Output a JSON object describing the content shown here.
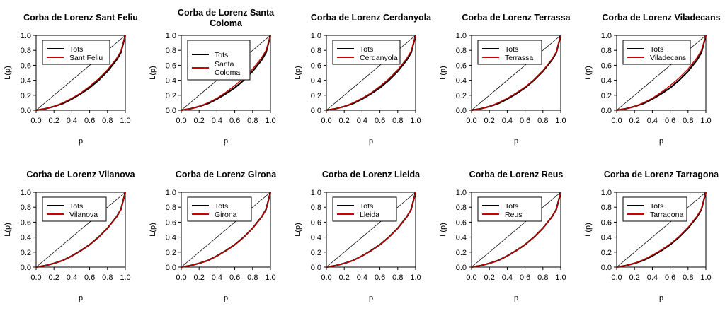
{
  "chart_data": [
    {
      "type": "line",
      "title": [
        "Corba de Lorenz Sant Feliu"
      ],
      "xlabel": "p",
      "ylabel": "L(p)",
      "xlim": [
        0,
        1
      ],
      "ylim": [
        0,
        1
      ],
      "xticks": [
        "0.0",
        "0.2",
        "0.4",
        "0.6",
        "0.8",
        "1.0"
      ],
      "yticks": [
        "0.0",
        "0.2",
        "0.4",
        "0.6",
        "0.8",
        "1.0"
      ],
      "legend_position": "top-left",
      "x": [
        0,
        0.1,
        0.2,
        0.3,
        0.4,
        0.5,
        0.6,
        0.7,
        0.8,
        0.9,
        0.95,
        1.0
      ],
      "series": [
        {
          "name": "Tots",
          "color": "#000000",
          "values": [
            0,
            0.02,
            0.05,
            0.09,
            0.15,
            0.22,
            0.3,
            0.4,
            0.52,
            0.67,
            0.77,
            1.0
          ]
        },
        {
          "name": "Sant Feliu",
          "color": "#cc0000",
          "values": [
            0,
            0.02,
            0.05,
            0.1,
            0.16,
            0.23,
            0.32,
            0.42,
            0.54,
            0.69,
            0.79,
            1.0
          ]
        }
      ]
    },
    {
      "type": "line",
      "title": [
        "Corba de Lorenz Santa",
        "Coloma"
      ],
      "xlabel": "p",
      "ylabel": "L(p)",
      "xlim": [
        0,
        1
      ],
      "ylim": [
        0,
        1
      ],
      "xticks": [
        "0.0",
        "0.2",
        "0.4",
        "0.6",
        "0.8",
        "1.0"
      ],
      "yticks": [
        "0.0",
        "0.2",
        "0.4",
        "0.6",
        "0.8",
        "1.0"
      ],
      "legend_position": "top-left",
      "x": [
        0,
        0.1,
        0.2,
        0.3,
        0.4,
        0.5,
        0.6,
        0.7,
        0.8,
        0.9,
        0.95,
        1.0
      ],
      "series": [
        {
          "name": "Tots",
          "color": "#000000",
          "values": [
            0,
            0.02,
            0.05,
            0.09,
            0.15,
            0.22,
            0.3,
            0.4,
            0.52,
            0.67,
            0.77,
            1.0
          ]
        },
        {
          "name": "Santa Coloma",
          "label_lines": [
            "Santa",
            "Coloma"
          ],
          "color": "#cc0000",
          "values": [
            0,
            0.02,
            0.05,
            0.1,
            0.16,
            0.24,
            0.33,
            0.43,
            0.55,
            0.7,
            0.8,
            1.0
          ]
        }
      ]
    },
    {
      "type": "line",
      "title": [
        "Corba de Lorenz Cerdanyola"
      ],
      "xlabel": "p",
      "ylabel": "L(p)",
      "xlim": [
        0,
        1
      ],
      "ylim": [
        0,
        1
      ],
      "xticks": [
        "0.0",
        "0.2",
        "0.4",
        "0.6",
        "0.8",
        "1.0"
      ],
      "yticks": [
        "0.0",
        "0.2",
        "0.4",
        "0.6",
        "0.8",
        "1.0"
      ],
      "legend_position": "top-left",
      "x": [
        0,
        0.1,
        0.2,
        0.3,
        0.4,
        0.5,
        0.6,
        0.7,
        0.8,
        0.9,
        0.95,
        1.0
      ],
      "series": [
        {
          "name": "Tots",
          "color": "#000000",
          "values": [
            0,
            0.02,
            0.05,
            0.09,
            0.15,
            0.22,
            0.3,
            0.4,
            0.52,
            0.67,
            0.77,
            1.0
          ]
        },
        {
          "name": "Cerdanyola",
          "color": "#cc0000",
          "values": [
            0,
            0.02,
            0.05,
            0.1,
            0.16,
            0.23,
            0.32,
            0.42,
            0.54,
            0.69,
            0.79,
            1.0
          ]
        }
      ]
    },
    {
      "type": "line",
      "title": [
        "Corba de Lorenz Terrassa"
      ],
      "xlabel": "p",
      "ylabel": "L(p)",
      "xlim": [
        0,
        1
      ],
      "ylim": [
        0,
        1
      ],
      "xticks": [
        "0.0",
        "0.2",
        "0.4",
        "0.6",
        "0.8",
        "1.0"
      ],
      "yticks": [
        "0.0",
        "0.2",
        "0.4",
        "0.6",
        "0.8",
        "1.0"
      ],
      "legend_position": "top-left",
      "x": [
        0,
        0.1,
        0.2,
        0.3,
        0.4,
        0.5,
        0.6,
        0.7,
        0.8,
        0.9,
        0.95,
        1.0
      ],
      "series": [
        {
          "name": "Tots",
          "color": "#000000",
          "values": [
            0,
            0.02,
            0.05,
            0.09,
            0.15,
            0.22,
            0.3,
            0.4,
            0.52,
            0.67,
            0.77,
            1.0
          ]
        },
        {
          "name": "Terrassa",
          "color": "#cc0000",
          "values": [
            0,
            0.02,
            0.05,
            0.1,
            0.16,
            0.23,
            0.31,
            0.41,
            0.53,
            0.68,
            0.78,
            1.0
          ]
        }
      ]
    },
    {
      "type": "line",
      "title": [
        "Corba de Lorenz Viladecans"
      ],
      "xlabel": "p",
      "ylabel": "L(p)",
      "xlim": [
        0,
        1
      ],
      "ylim": [
        0,
        1
      ],
      "xticks": [
        "0.0",
        "0.2",
        "0.4",
        "0.6",
        "0.8",
        "1.0"
      ],
      "yticks": [
        "0.0",
        "0.2",
        "0.4",
        "0.6",
        "0.8",
        "1.0"
      ],
      "legend_position": "top-left",
      "x": [
        0,
        0.1,
        0.2,
        0.3,
        0.4,
        0.5,
        0.6,
        0.7,
        0.8,
        0.9,
        0.95,
        1.0
      ],
      "series": [
        {
          "name": "Tots",
          "color": "#000000",
          "values": [
            0,
            0.02,
            0.05,
            0.09,
            0.15,
            0.22,
            0.3,
            0.4,
            0.52,
            0.67,
            0.77,
            1.0
          ]
        },
        {
          "name": "Viladecans",
          "color": "#cc0000",
          "values": [
            0,
            0.02,
            0.05,
            0.1,
            0.16,
            0.24,
            0.33,
            0.43,
            0.55,
            0.7,
            0.8,
            1.0
          ]
        }
      ]
    },
    {
      "type": "line",
      "title": [
        "Corba de Lorenz Vilanova"
      ],
      "xlabel": "p",
      "ylabel": "L(p)",
      "xlim": [
        0,
        1
      ],
      "ylim": [
        0,
        1
      ],
      "xticks": [
        "0.0",
        "0.2",
        "0.4",
        "0.6",
        "0.8",
        "1.0"
      ],
      "yticks": [
        "0.0",
        "0.2",
        "0.4",
        "0.6",
        "0.8",
        "1.0"
      ],
      "legend_position": "top-left",
      "x": [
        0,
        0.1,
        0.2,
        0.3,
        0.4,
        0.5,
        0.6,
        0.7,
        0.8,
        0.9,
        0.95,
        1.0
      ],
      "series": [
        {
          "name": "Tots",
          "color": "#000000",
          "values": [
            0,
            0.02,
            0.05,
            0.09,
            0.15,
            0.22,
            0.3,
            0.4,
            0.52,
            0.67,
            0.77,
            1.0
          ]
        },
        {
          "name": "Vilanova",
          "color": "#cc0000",
          "values": [
            0,
            0.02,
            0.05,
            0.09,
            0.15,
            0.22,
            0.3,
            0.4,
            0.52,
            0.67,
            0.77,
            1.0
          ]
        }
      ]
    },
    {
      "type": "line",
      "title": [
        "Corba de Lorenz Girona"
      ],
      "xlabel": "p",
      "ylabel": "L(p)",
      "xlim": [
        0,
        1
      ],
      "ylim": [
        0,
        1
      ],
      "xticks": [
        "0.0",
        "0.2",
        "0.4",
        "0.6",
        "0.8",
        "1.0"
      ],
      "yticks": [
        "0.0",
        "0.2",
        "0.4",
        "0.6",
        "0.8",
        "1.0"
      ],
      "legend_position": "top-left",
      "x": [
        0,
        0.1,
        0.2,
        0.3,
        0.4,
        0.5,
        0.6,
        0.7,
        0.8,
        0.9,
        0.95,
        1.0
      ],
      "series": [
        {
          "name": "Tots",
          "color": "#000000",
          "values": [
            0,
            0.02,
            0.05,
            0.09,
            0.15,
            0.22,
            0.3,
            0.4,
            0.52,
            0.67,
            0.77,
            1.0
          ]
        },
        {
          "name": "Girona",
          "color": "#cc0000",
          "values": [
            0,
            0.02,
            0.05,
            0.09,
            0.15,
            0.22,
            0.3,
            0.4,
            0.52,
            0.67,
            0.77,
            1.0
          ]
        }
      ]
    },
    {
      "type": "line",
      "title": [
        "Corba de Lorenz Lleida"
      ],
      "xlabel": "p",
      "ylabel": "L(p)",
      "xlim": [
        0,
        1
      ],
      "ylim": [
        0,
        1
      ],
      "xticks": [
        "0.0",
        "0.2",
        "0.4",
        "0.6",
        "0.8",
        "1.0"
      ],
      "yticks": [
        "0.0",
        "0.2",
        "0.4",
        "0.6",
        "0.8",
        "1.0"
      ],
      "legend_position": "top-left",
      "x": [
        0,
        0.1,
        0.2,
        0.3,
        0.4,
        0.5,
        0.6,
        0.7,
        0.8,
        0.9,
        0.95,
        1.0
      ],
      "series": [
        {
          "name": "Tots",
          "color": "#000000",
          "values": [
            0,
            0.02,
            0.05,
            0.09,
            0.15,
            0.22,
            0.3,
            0.4,
            0.52,
            0.67,
            0.77,
            1.0
          ]
        },
        {
          "name": "Lleida",
          "color": "#cc0000",
          "values": [
            0,
            0.02,
            0.05,
            0.09,
            0.15,
            0.22,
            0.3,
            0.4,
            0.52,
            0.67,
            0.77,
            1.0
          ]
        }
      ]
    },
    {
      "type": "line",
      "title": [
        "Corba de Lorenz Reus"
      ],
      "xlabel": "p",
      "ylabel": "L(p)",
      "xlim": [
        0,
        1
      ],
      "ylim": [
        0,
        1
      ],
      "xticks": [
        "0.0",
        "0.2",
        "0.4",
        "0.6",
        "0.8",
        "1.0"
      ],
      "yticks": [
        "0.0",
        "0.2",
        "0.4",
        "0.6",
        "0.8",
        "1.0"
      ],
      "legend_position": "top-left",
      "x": [
        0,
        0.1,
        0.2,
        0.3,
        0.4,
        0.5,
        0.6,
        0.7,
        0.8,
        0.9,
        0.95,
        1.0
      ],
      "series": [
        {
          "name": "Tots",
          "color": "#000000",
          "values": [
            0,
            0.02,
            0.05,
            0.09,
            0.15,
            0.22,
            0.3,
            0.4,
            0.52,
            0.67,
            0.77,
            1.0
          ]
        },
        {
          "name": "Reus",
          "color": "#cc0000",
          "values": [
            0,
            0.02,
            0.05,
            0.09,
            0.15,
            0.22,
            0.3,
            0.4,
            0.52,
            0.67,
            0.77,
            1.0
          ]
        }
      ]
    },
    {
      "type": "line",
      "title": [
        "Corba de Lorenz Tarragona"
      ],
      "xlabel": "p",
      "ylabel": "L(p)",
      "xlim": [
        0,
        1
      ],
      "ylim": [
        0,
        1
      ],
      "xticks": [
        "0.0",
        "0.2",
        "0.4",
        "0.6",
        "0.8",
        "1.0"
      ],
      "yticks": [
        "0.0",
        "0.2",
        "0.4",
        "0.6",
        "0.8",
        "1.0"
      ],
      "legend_position": "top-left",
      "x": [
        0,
        0.1,
        0.2,
        0.3,
        0.4,
        0.5,
        0.6,
        0.7,
        0.8,
        0.9,
        0.95,
        1.0
      ],
      "series": [
        {
          "name": "Tots",
          "color": "#000000",
          "values": [
            0,
            0.02,
            0.05,
            0.09,
            0.15,
            0.22,
            0.3,
            0.4,
            0.52,
            0.67,
            0.77,
            1.0
          ]
        },
        {
          "name": "Tarragona",
          "color": "#cc0000",
          "values": [
            0,
            0.02,
            0.05,
            0.1,
            0.16,
            0.23,
            0.31,
            0.41,
            0.53,
            0.68,
            0.78,
            1.0
          ]
        }
      ]
    }
  ]
}
